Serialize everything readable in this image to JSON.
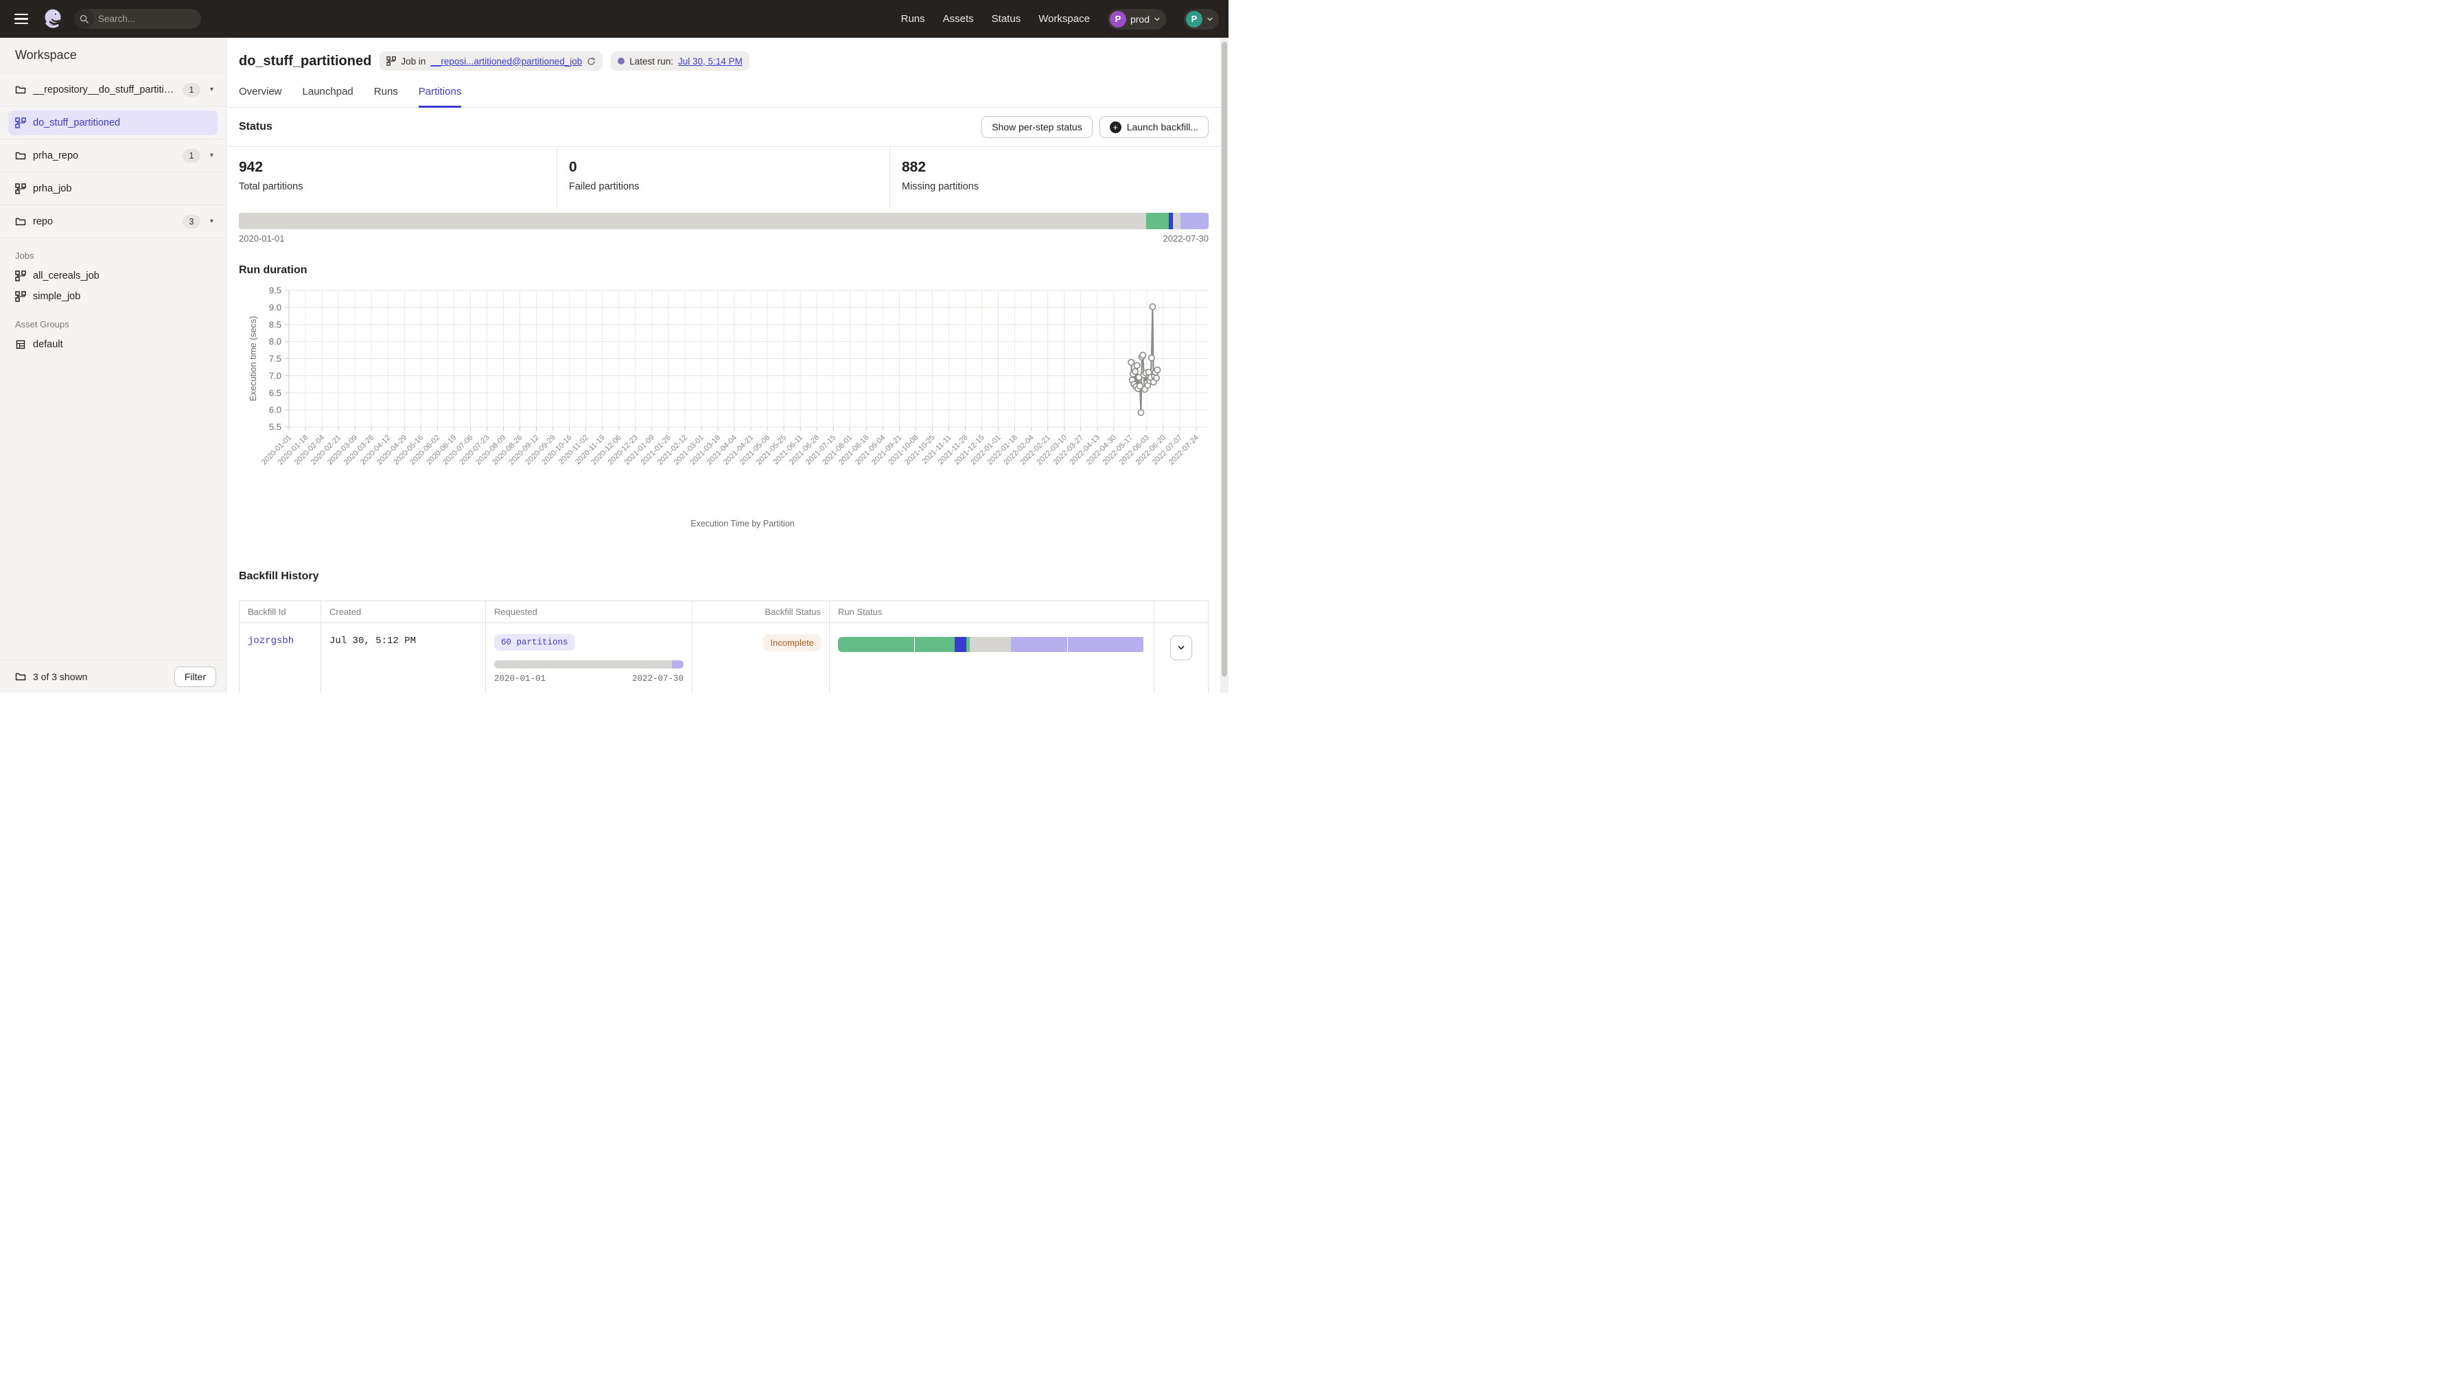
{
  "colors": {
    "accent": "#3E3BD2",
    "green": "#62BD87",
    "lavender": "#B6B0EE",
    "blue": "#3A3AD6",
    "bar_gray": "#D7D5D2"
  },
  "topnav": {
    "search_placeholder": "Search...",
    "search_shortcut": "/",
    "links": [
      "Runs",
      "Assets",
      "Status",
      "Workspace"
    ],
    "deployment": {
      "initial": "P",
      "label": "prod",
      "color": "#9C4EC6"
    },
    "user": {
      "initial": "P",
      "color": "#2E9C85"
    }
  },
  "sidebar": {
    "title": "Workspace",
    "items": [
      {
        "type": "repo",
        "icon": "folder-icon",
        "label": "__repository__do_stuff_partitio...",
        "badge": "1"
      },
      {
        "type": "job-selected",
        "icon": "job-icon",
        "label": "do_stuff_partitioned"
      },
      {
        "type": "repo",
        "icon": "folder-icon",
        "label": "prha_repo",
        "badge": "1"
      },
      {
        "type": "job-top",
        "icon": "job-icon",
        "label": "prha_job"
      },
      {
        "type": "repo",
        "icon": "folder-icon",
        "label": "repo",
        "badge": "3"
      },
      {
        "type": "section",
        "label": "Jobs"
      },
      {
        "type": "job",
        "icon": "job-icon",
        "label": "all_cereals_job"
      },
      {
        "type": "job",
        "icon": "job-icon",
        "label": "simple_job"
      },
      {
        "type": "section",
        "label": "Asset Groups"
      },
      {
        "type": "asset-group",
        "icon": "grid-icon",
        "label": "default"
      }
    ],
    "footer": {
      "count": "3 of 3 shown",
      "filter_label": "Filter"
    }
  },
  "header": {
    "title": "do_stuff_partitioned",
    "job_badge_prefix": "Job in",
    "job_badge_link": "__reposi...artitioned@partitioned_job",
    "latest_run_prefix": "Latest run:",
    "latest_run_link": "Jul 30, 5:14 PM"
  },
  "tabs": [
    {
      "label": "Overview",
      "active": false
    },
    {
      "label": "Launchpad",
      "active": false
    },
    {
      "label": "Runs",
      "active": false
    },
    {
      "label": "Partitions",
      "active": true
    }
  ],
  "status_section": {
    "title": "Status",
    "buttons": {
      "per_step": "Show per-step status",
      "backfill": "Launch backfill...",
      "plus": "+"
    },
    "stats": [
      {
        "value": "942",
        "label": "Total partitions"
      },
      {
        "value": "0",
        "label": "Failed partitions"
      },
      {
        "value": "882",
        "label": "Missing partitions"
      }
    ],
    "partition_bar": {
      "segments": [
        {
          "color": "bar_gray",
          "pct": 93.56
        },
        {
          "color": "green",
          "pct": 2.36
        },
        {
          "color": "blue",
          "pct": 0.4
        },
        {
          "color": "bar_gray",
          "pct": 0.8
        },
        {
          "color": "lavender",
          "pct": 2.88
        }
      ],
      "start_date": "2020-01-01",
      "end_date": "2022-07-30"
    }
  },
  "run_duration_title": "Run duration",
  "chart_data": {
    "type": "line",
    "title": "Execution Time by Partition",
    "ylabel": "Execution time (secs)",
    "ylim": [
      5.5,
      9.5
    ],
    "y_ticks": [
      9.5,
      9.0,
      8.5,
      8.0,
      7.5,
      7.0,
      6.5,
      6.0,
      5.5
    ],
    "grid": true,
    "line_color": "#8E8C89",
    "x_range": [
      "2020-01-01",
      "2022-07-24"
    ],
    "x_ticks": [
      "2020-01-01",
      "2020-01-18",
      "2020-02-04",
      "2020-02-21",
      "2020-03-09",
      "2020-03-26",
      "2020-04-12",
      "2020-04-29",
      "2020-05-16",
      "2020-06-02",
      "2020-06-19",
      "2020-07-06",
      "2020-07-23",
      "2020-08-09",
      "2020-08-26",
      "2020-09-12",
      "2020-09-29",
      "2020-10-16",
      "2020-11-02",
      "2020-11-19",
      "2020-12-06",
      "2020-12-23",
      "2021-01-09",
      "2021-01-26",
      "2021-02-12",
      "2021-03-01",
      "2021-03-18",
      "2021-04-04",
      "2021-04-21",
      "2021-05-08",
      "2021-05-25",
      "2021-06-11",
      "2021-06-28",
      "2021-07-15",
      "2021-08-01",
      "2021-08-18",
      "2021-09-04",
      "2021-09-21",
      "2021-10-08",
      "2021-10-25",
      "2021-11-11",
      "2021-11-28",
      "2021-12-15",
      "2022-01-01",
      "2022-01-18",
      "2022-02-04",
      "2022-02-21",
      "2022-03-10",
      "2022-03-27",
      "2022-04-13",
      "2022-04-30",
      "2022-05-17",
      "2022-06-03",
      "2022-06-20",
      "2022-07-07",
      "2022-07-24"
    ],
    "series": [
      {
        "name": "Execution time (secs)",
        "points": [
          [
            "2022-05-18",
            7.39
          ],
          [
            "2022-05-19",
            6.87
          ],
          [
            "2022-05-20",
            7.05
          ],
          [
            "2022-05-21",
            6.75
          ],
          [
            "2022-05-22",
            7.12
          ],
          [
            "2022-05-23",
            6.68
          ],
          [
            "2022-05-24",
            7.3
          ],
          [
            "2022-05-25",
            6.62
          ],
          [
            "2022-05-26",
            6.95
          ],
          [
            "2022-05-27",
            6.7
          ],
          [
            "2022-05-28",
            5.92
          ],
          [
            "2022-05-29",
            7.55
          ],
          [
            "2022-05-30",
            7.6
          ],
          [
            "2022-05-31",
            7.02
          ],
          [
            "2022-06-01",
            6.6
          ],
          [
            "2022-06-02",
            7.08
          ],
          [
            "2022-06-03",
            6.78
          ],
          [
            "2022-06-04",
            6.72
          ],
          [
            "2022-06-05",
            7.1
          ],
          [
            "2022-06-06",
            6.85
          ],
          [
            "2022-06-07",
            6.95
          ],
          [
            "2022-06-08",
            7.52
          ],
          [
            "2022-06-09",
            9.02
          ],
          [
            "2022-06-10",
            6.81
          ],
          [
            "2022-06-11",
            6.98
          ],
          [
            "2022-06-12",
            7.1
          ],
          [
            "2022-06-13",
            6.93
          ],
          [
            "2022-06-14",
            7.17
          ]
        ]
      }
    ]
  },
  "backfill": {
    "title": "Backfill History",
    "columns": [
      "Backfill Id",
      "Created",
      "Requested",
      "Backfill Status",
      "Run Status",
      ""
    ],
    "row": {
      "id": "jozrgsbh",
      "created": "Jul 30, 5:12 PM",
      "requested_badge": "60 partitions",
      "requested_bar": {
        "segments": [
          {
            "color": "bar_gray",
            "pct": 94
          },
          {
            "color": "lavender",
            "pct": 6
          }
        ],
        "start_date": "2020-01-01",
        "end_date": "2022-07-30"
      },
      "backfill_status": "Incomplete",
      "run_status_segments": [
        {
          "color": "green",
          "pct": 24.8
        },
        {
          "color": "green",
          "pct": 13.2
        },
        {
          "color": "blue",
          "pct": 3.7
        },
        {
          "color": "green",
          "pct": 1.1
        },
        {
          "color": "bar_gray",
          "pct": 13.4
        },
        {
          "color": "lavender",
          "pct": 18.4
        },
        {
          "color": "lavender",
          "pct": 24.7
        }
      ]
    }
  }
}
